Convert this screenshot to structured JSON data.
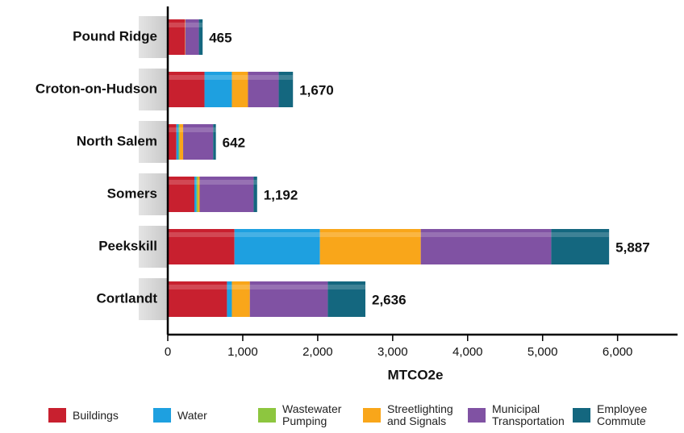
{
  "chart_data": {
    "type": "stacked-bar-horizontal",
    "x_label": "MTCO2e",
    "categories": [
      "Pound Ridge",
      "Croton-on-Hudson",
      "North Salem",
      "Somers",
      "Peekskill",
      "Cortlandt"
    ],
    "series": [
      {
        "name": "Buildings",
        "color": "#c8202f",
        "values": [
          230,
          490,
          115,
          355,
          890,
          790
        ]
      },
      {
        "name": "Water",
        "color": "#1ea0e0",
        "values": [
          0,
          365,
          30,
          30,
          1140,
          65
        ]
      },
      {
        "name": "Wastewater Pumping",
        "color": "#8dc63f",
        "values": [
          0,
          0,
          15,
          20,
          0,
          0
        ]
      },
      {
        "name": "Streetlighting and Signals",
        "color": "#f9a61a",
        "values": [
          5,
          215,
          45,
          20,
          1345,
          240
        ]
      },
      {
        "name": "Municipal Transportation",
        "color": "#8052a3",
        "values": [
          180,
          410,
          400,
          720,
          1740,
          1040
        ]
      },
      {
        "name": "Employee Commute",
        "color": "#14677f",
        "values": [
          50,
          190,
          37,
          47,
          772,
          501
        ]
      }
    ],
    "totals": [
      465,
      1670,
      642,
      1192,
      5887,
      2636
    ],
    "total_labels": [
      "465",
      "1,670",
      "642",
      "1,192",
      "5,887",
      "2,636"
    ],
    "xlim": [
      0,
      6800
    ],
    "xticks": [
      0,
      {
        "value": 1000,
        "label": "1,000"
      },
      {
        "value": 2000,
        "label": "2,000"
      },
      {
        "value": 3000,
        "label": "3,000"
      },
      {
        "value": 4000,
        "label": "4,000"
      },
      {
        "value": 5000,
        "label": "5,000"
      },
      {
        "value": 6000,
        "label": "6,000"
      }
    ]
  }
}
